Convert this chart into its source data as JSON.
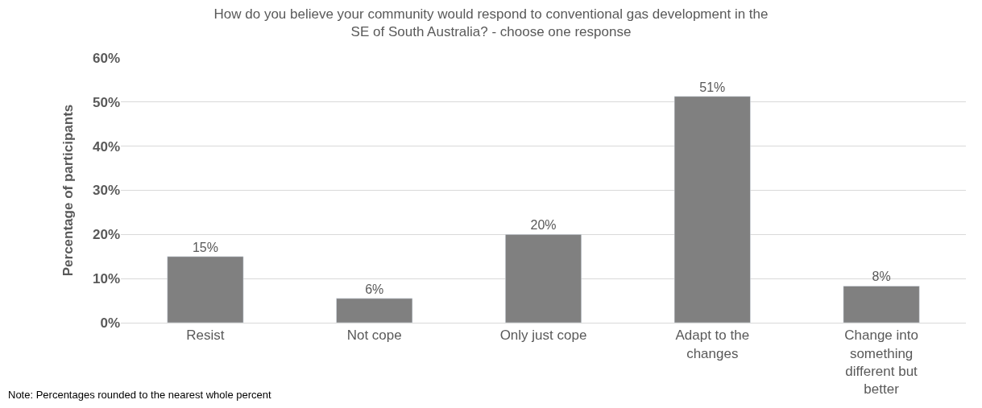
{
  "chart_data": {
    "type": "bar",
    "title": "How do you believe your community would respond to conventional gas development in the SE of South Australia? - choose one response",
    "ylabel": "Percentage of participants",
    "categories": [
      "Resist",
      "Not cope",
      "Only just cope",
      "Adapt to the changes",
      "Change into something different but better"
    ],
    "values": [
      15,
      5.5,
      20,
      51.3,
      8.3
    ],
    "value_labels": [
      "15%",
      "6%",
      "20%",
      "51%",
      "8%"
    ],
    "color": "#808080",
    "ylim": [
      0,
      60
    ],
    "yticks": [
      {
        "value": 0,
        "label": "0%"
      },
      {
        "value": 10,
        "label": "10%"
      },
      {
        "value": 20,
        "label": "20%"
      },
      {
        "value": 30,
        "label": "30%"
      },
      {
        "value": 40,
        "label": "40%"
      },
      {
        "value": 50,
        "label": "50%"
      },
      {
        "value": 60,
        "label": "60%"
      }
    ],
    "grid": "y",
    "legend": false,
    "annotations": [
      "Note: Percentages rounded to the nearest whole percent"
    ]
  }
}
